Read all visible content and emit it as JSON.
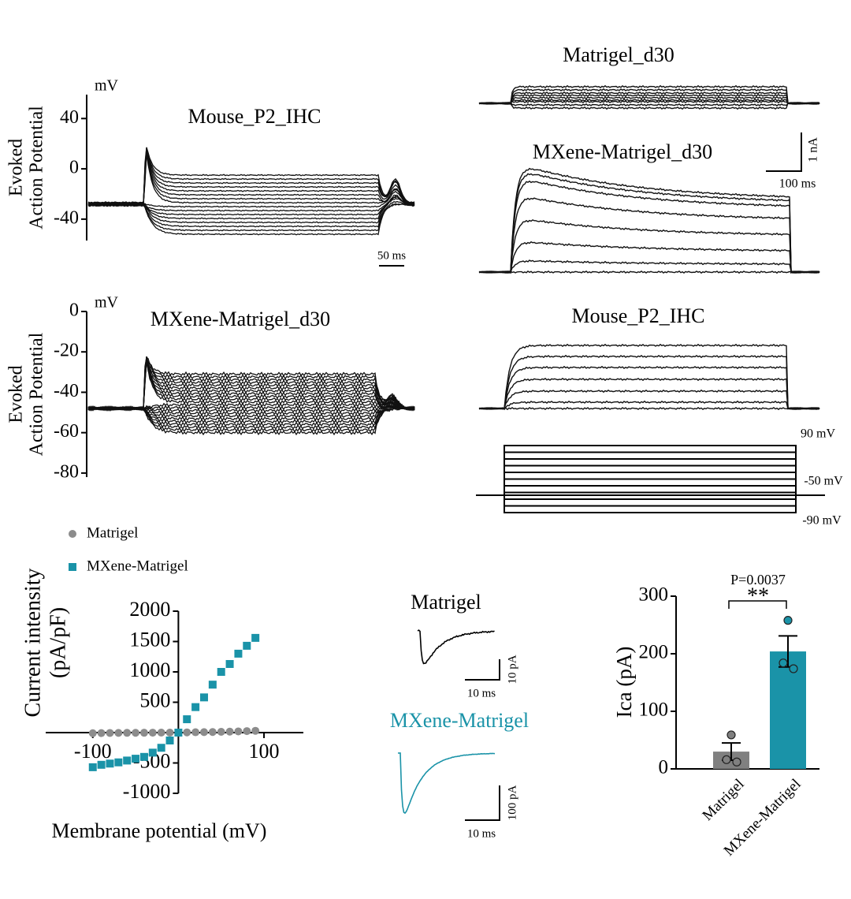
{
  "chart_data": [
    {
      "type": "trace",
      "title": "Mouse_P2_IHC",
      "ylabel": [
        "Evoked",
        "Action Potential"
      ],
      "yunit": "mV",
      "ylim": [
        -57,
        59
      ],
      "yticks": [
        -40,
        0,
        40
      ],
      "scale_bar": "50 ms"
    },
    {
      "type": "trace",
      "title": "MXene-Matrigel_d30",
      "ylabel": [
        "Evoked",
        "Action Potential"
      ],
      "yunit": "mV",
      "ylim": [
        -82,
        0
      ],
      "yticks": [
        -80,
        -60,
        -40,
        -20,
        0
      ]
    },
    {
      "type": "current-traces",
      "panels": [
        "Matrigel_d30",
        "MXene-Matrigel_d30",
        "Mouse_P2_IHC"
      ],
      "scale_bar": [
        "1 nA",
        "100 ms"
      ],
      "protocol_labels": [
        "90 mV",
        "-50 mV",
        "-90 mV"
      ]
    },
    {
      "type": "scatter",
      "xlabel": "Membrane potential (mV)",
      "ylabel": [
        "Current intensity",
        "(pA/pF)"
      ],
      "xlim": [
        -155,
        146
      ],
      "ylim": [
        -1000,
        2000
      ],
      "xticks": [
        -100,
        100
      ],
      "yticks": [
        -1000,
        -500,
        500,
        1000,
        1500,
        2000
      ],
      "x": [
        -100,
        -90,
        -80,
        -70,
        -60,
        -50,
        -40,
        -30,
        -20,
        -10,
        0,
        10,
        20,
        30,
        40,
        50,
        60,
        70,
        80,
        90
      ],
      "series": [
        {
          "name": "Matrigel",
          "color": "#8c8c8c",
          "marker": "circle",
          "values": [
            -10,
            -8,
            -6,
            -5,
            -4,
            -3,
            -2,
            -1,
            0,
            0,
            2,
            4,
            6,
            8,
            10,
            13,
            16,
            20,
            25,
            30
          ]
        },
        {
          "name": "MXene-Matrigel",
          "color": "#1a93a8",
          "marker": "square",
          "values": [
            -570,
            -530,
            -510,
            -490,
            -460,
            -430,
            -400,
            -330,
            -250,
            -130,
            0,
            220,
            420,
            580,
            790,
            1000,
            1130,
            1300,
            1430,
            1560
          ]
        }
      ]
    },
    {
      "type": "ica-traces",
      "series": [
        {
          "name": "Matrigel",
          "color": "#000000"
        },
        {
          "name": "MXene-Matrigel",
          "color": "#1a93a8"
        }
      ],
      "scale_bars": [
        [
          "10 pA",
          "10 ms"
        ],
        [
          "100 pA",
          "10 ms"
        ]
      ]
    },
    {
      "type": "bar",
      "ylabel": "Ica (pA)",
      "categories": [
        "Matrigel",
        "MXene-Matrigel"
      ],
      "values": [
        30,
        204
      ],
      "errors": [
        15,
        27
      ],
      "points": [
        [
          59,
          16,
          12
        ],
        [
          258,
          184,
          174
        ]
      ],
      "colors": [
        "#808080",
        "#1a93a8"
      ],
      "ylim": [
        0,
        300
      ],
      "yticks": [
        0,
        100,
        200,
        300
      ],
      "annotation": "P=0.0037",
      "significance": "**"
    }
  ]
}
